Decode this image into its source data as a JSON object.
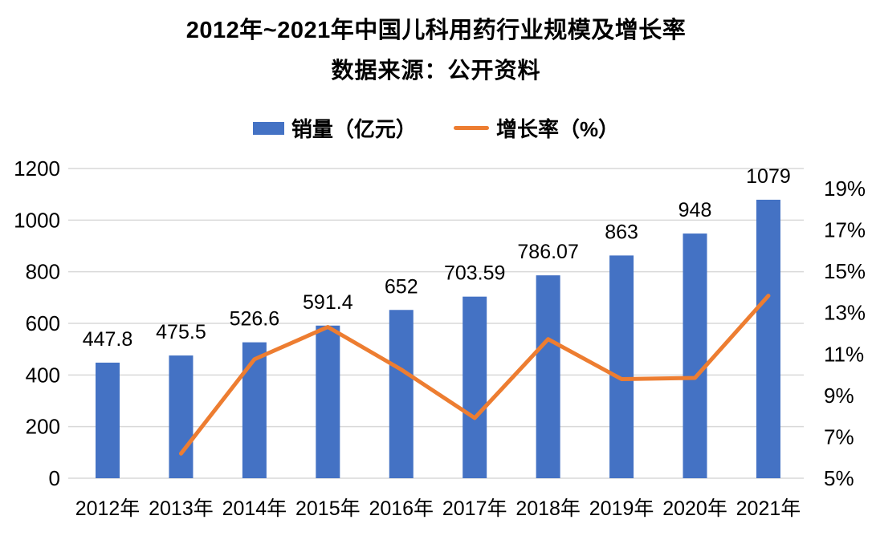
{
  "header": {
    "title": "2012年~2021年中国儿科用药行业规模及增长率",
    "subtitle": "数据来源：公开资料"
  },
  "legend": {
    "items": [
      {
        "label": "销量（亿元）",
        "type": "bar",
        "color": "#4472C4"
      },
      {
        "label": "增长率（%）",
        "type": "line",
        "color": "#ED7D31"
      }
    ],
    "position": "top"
  },
  "colors": {
    "bar": "#4472C4",
    "line": "#ED7D31",
    "gridline": "#D9D9D9",
    "text": "#000000",
    "background": "#FFFFFF"
  },
  "chart_data": {
    "type": "combo-bar-line",
    "title": "2012年~2021年中国儿科用药行业规模及增长率",
    "subtitle": "数据来源：公开资料",
    "categories": [
      "2012年",
      "2013年",
      "2014年",
      "2015年",
      "2016年",
      "2017年",
      "2018年",
      "2019年",
      "2020年",
      "2021年"
    ],
    "series": [
      {
        "name": "销量（亿元）",
        "type": "bar",
        "axis": "left",
        "color": "#4472C4",
        "values": [
          447.8,
          475.5,
          526.6,
          591.4,
          652,
          703.59,
          786.07,
          863,
          948,
          1079
        ],
        "value_labels": [
          "447.8",
          "475.5",
          "526.6",
          "591.4",
          "652",
          "703.59",
          "786.07",
          "863",
          "948",
          "1079"
        ]
      },
      {
        "name": "增长率（%）",
        "type": "line",
        "axis": "right",
        "color": "#ED7D31",
        "values": [
          null,
          6.19,
          10.75,
          12.31,
          10.25,
          7.91,
          11.72,
          9.79,
          9.85,
          13.82
        ]
      }
    ],
    "axes": {
      "left": {
        "min": 0,
        "max": 1200,
        "step": 200,
        "ticks": [
          "0",
          "200",
          "400",
          "600",
          "800",
          "1000",
          "1200"
        ]
      },
      "right": {
        "min": 5,
        "max": 19,
        "step": 2,
        "ticks": [
          "5%",
          "7%",
          "9%",
          "11%",
          "13%",
          "15%",
          "17%",
          "19%"
        ]
      }
    },
    "grid": true,
    "legend_position": "top"
  }
}
